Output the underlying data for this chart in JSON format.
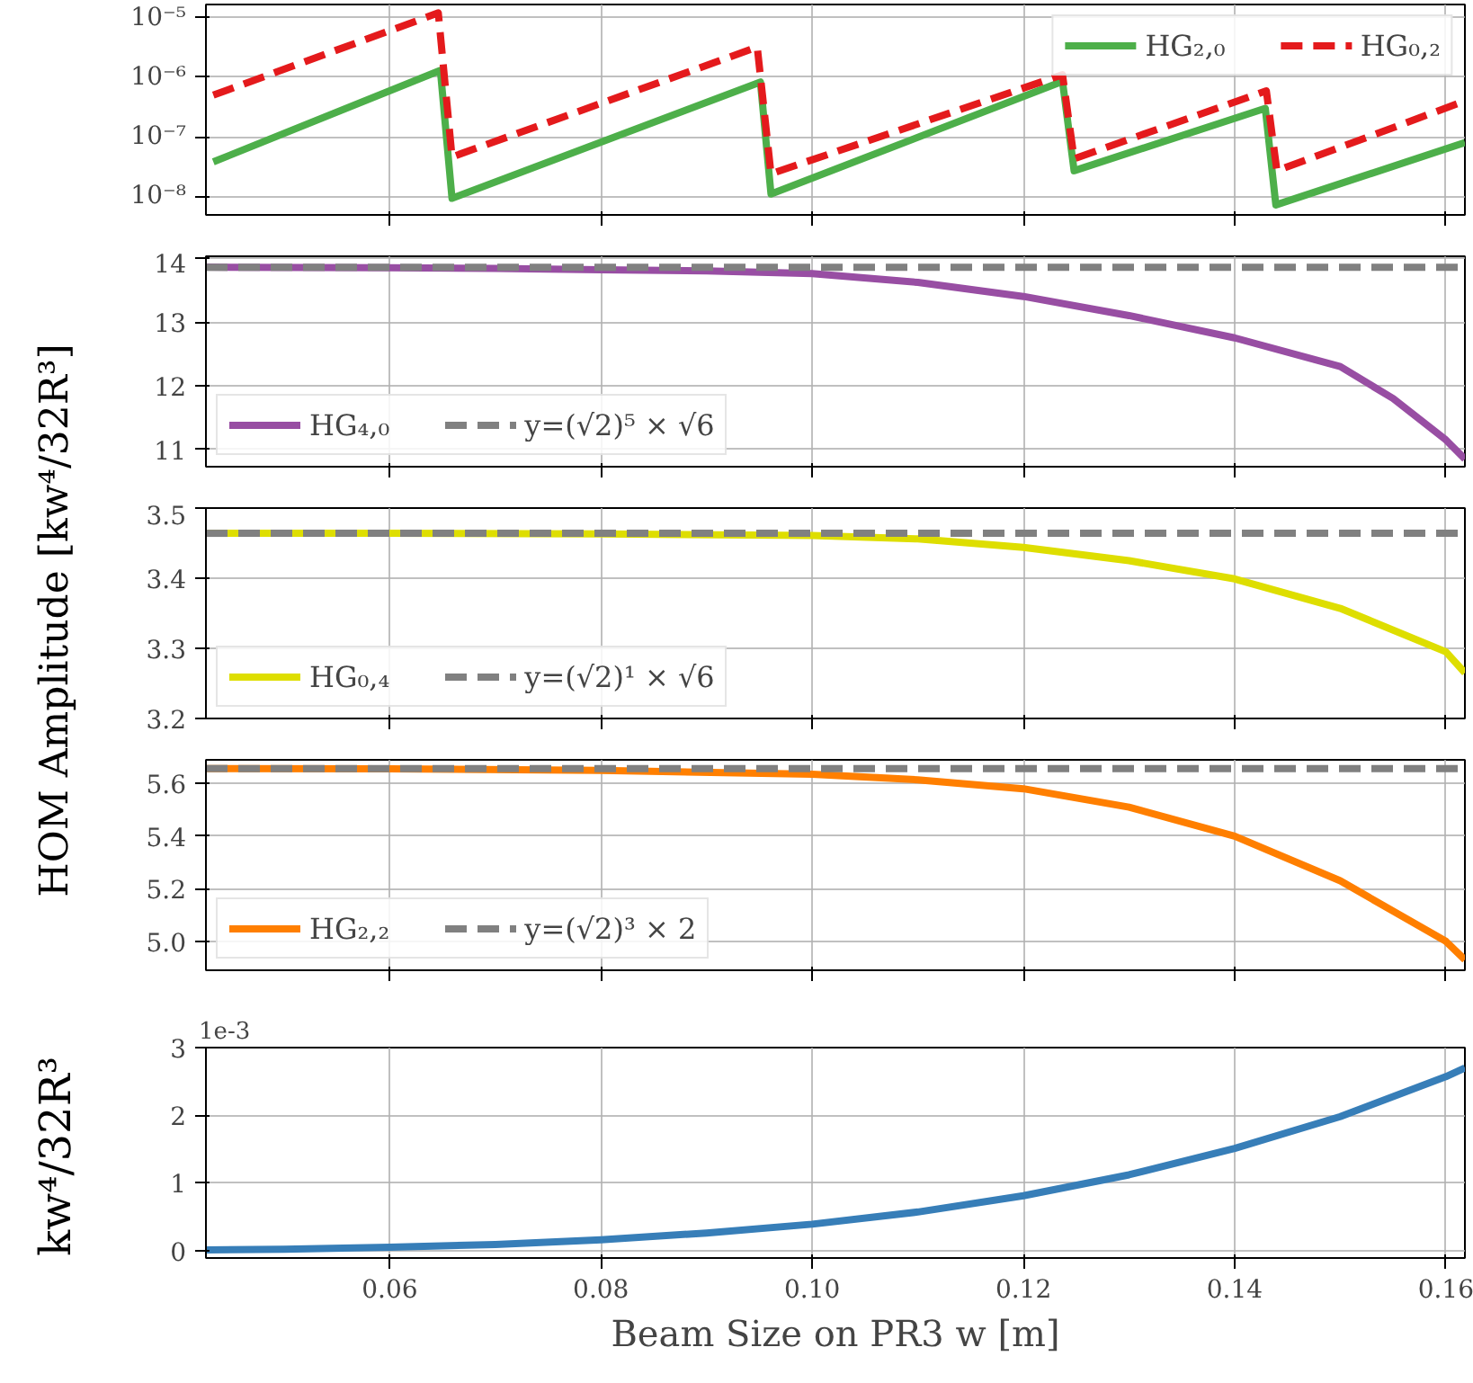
{
  "chart_data": [
    {
      "type": "line",
      "log": true,
      "legend": "top right",
      "grid": true,
      "tick_labels": "y",
      "xlim": [
        0.0426,
        0.1618
      ],
      "ylim": [
        4.9e-09,
        1.66e-05
      ],
      "yticks": [
        {
          "value": 1e-08,
          "label": "10⁻⁸"
        },
        {
          "value": 1e-07,
          "label": "10⁻⁷"
        },
        {
          "value": 1e-06,
          "label": "10⁻⁶"
        },
        {
          "value": 1e-05,
          "label": "10⁻⁵"
        }
      ],
      "series": [
        {
          "name": "HG₂,₀",
          "color": "#4daf4a",
          "line_style": "solid",
          "x": [
            0.0433,
            0.0648,
            0.0659,
            0.0951,
            0.0961,
            0.1237,
            0.1248,
            0.1429,
            0.1439,
            0.1618
          ],
          "values": [
            3.8e-08,
            1.3e-06,
            9.3e-09,
            8.3e-07,
            1.1e-08,
            8.5e-07,
            2.7e-08,
            3e-07,
            7.2e-09,
            8e-08
          ]
        },
        {
          "name": "HG₀,₂",
          "color": "#e41a1c",
          "line_style": "dashed",
          "x": [
            0.0433,
            0.0646,
            0.0659,
            0.0948,
            0.0961,
            0.1237,
            0.1248,
            0.143,
            0.144,
            0.1618
          ],
          "values": [
            5e-07,
            1.2e-05,
            4.6e-08,
            3.2e-06,
            2.4e-08,
            1.1e-06,
            4.3e-08,
            5.9e-07,
            2.7e-08,
            4e-07
          ]
        }
      ]
    },
    {
      "type": "line",
      "legend": "bottom left",
      "grid": true,
      "tick_labels": "y",
      "xlim": [
        0.0426,
        0.1618
      ],
      "ylim": [
        10.73,
        14.03
      ],
      "yticks": [
        11,
        12,
        13,
        14
      ],
      "x": [
        0.0426,
        0.06,
        0.07,
        0.08,
        0.09,
        0.1,
        0.11,
        0.12,
        0.13,
        0.14,
        0.15,
        0.155,
        0.16,
        0.1618
      ],
      "series": [
        {
          "name": "HG₄,₀",
          "color": "#984ea3",
          "line_style": "solid",
          "values": [
            13.86,
            13.85,
            13.84,
            13.82,
            13.8,
            13.76,
            13.62,
            13.4,
            13.1,
            12.75,
            12.3,
            11.8,
            11.15,
            10.85
          ]
        }
      ],
      "ref_lines": [
        {
          "axis": "y",
          "value": 13.856,
          "label": "y=(√2)⁵ × √6",
          "color": "#808080",
          "line_style": "dashed"
        }
      ]
    },
    {
      "type": "line",
      "legend": "bottom left",
      "grid": true,
      "tick_labels": "y",
      "ylabel": "HOM Amplitude [kw⁴/32R³]",
      "xlim": [
        0.0426,
        0.1618
      ],
      "ylim": [
        3.2,
        3.5
      ],
      "yticks": [
        3.2,
        3.3,
        3.4,
        3.5
      ],
      "x": [
        0.0426,
        0.06,
        0.08,
        0.1,
        0.11,
        0.12,
        0.13,
        0.14,
        0.15,
        0.16,
        0.1618
      ],
      "series": [
        {
          "name": "HG₀,₄",
          "color": "#dede00",
          "line_style": "solid",
          "values": [
            3.464,
            3.464,
            3.463,
            3.461,
            3.456,
            3.444,
            3.425,
            3.399,
            3.357,
            3.295,
            3.265
          ]
        }
      ],
      "ref_lines": [
        {
          "axis": "y",
          "value": 3.464,
          "label": "y=(√2)¹ × √6",
          "color": "#808080",
          "line_style": "dashed"
        }
      ]
    },
    {
      "type": "line",
      "legend": "bottom left",
      "grid": true,
      "tick_labels": "y",
      "xlim": [
        0.0426,
        0.1618
      ],
      "ylim": [
        4.89,
        5.69
      ],
      "yticks": [
        {
          "value": 5.0,
          "label": "5.0"
        },
        5.2,
        5.4,
        5.6
      ],
      "x": [
        0.0426,
        0.06,
        0.08,
        0.1,
        0.11,
        0.12,
        0.13,
        0.14,
        0.15,
        0.16,
        0.1618
      ],
      "series": [
        {
          "name": "HG₂,₂",
          "color": "#ff7f00",
          "line_style": "solid",
          "values": [
            5.657,
            5.656,
            5.65,
            5.635,
            5.614,
            5.58,
            5.51,
            5.4,
            5.23,
            5.0,
            4.93
          ]
        }
      ],
      "ref_lines": [
        {
          "axis": "y",
          "value": 5.657,
          "label": "y=(√2)³ × 2",
          "color": "#808080",
          "line_style": "dashed"
        }
      ]
    },
    {
      "type": "line",
      "grid": true,
      "xlabel": "Beam Size on PR3 w [m]",
      "ylabel": "kw⁴/32R³",
      "annotations": [
        "1e-3"
      ],
      "xlim": [
        0.0426,
        0.1618
      ],
      "ylim": [
        -0.11,
        3.0
      ],
      "xticks": [
        0.06,
        0.08,
        {
          "value": 0.1,
          "label": "0.10"
        },
        0.12,
        0.14,
        0.16
      ],
      "yticks": [
        0,
        1,
        2,
        3
      ],
      "x": [
        0.0426,
        0.05,
        0.06,
        0.07,
        0.08,
        0.09,
        0.1,
        0.11,
        0.12,
        0.13,
        0.14,
        0.15,
        0.16,
        0.1618
      ],
      "series": [
        {
          "color": "#377eb8",
          "line_style": "solid",
          "values": [
            0.01,
            0.02,
            0.05,
            0.09,
            0.16,
            0.26,
            0.39,
            0.57,
            0.81,
            1.12,
            1.51,
            1.98,
            2.57,
            2.7
          ]
        }
      ]
    }
  ]
}
